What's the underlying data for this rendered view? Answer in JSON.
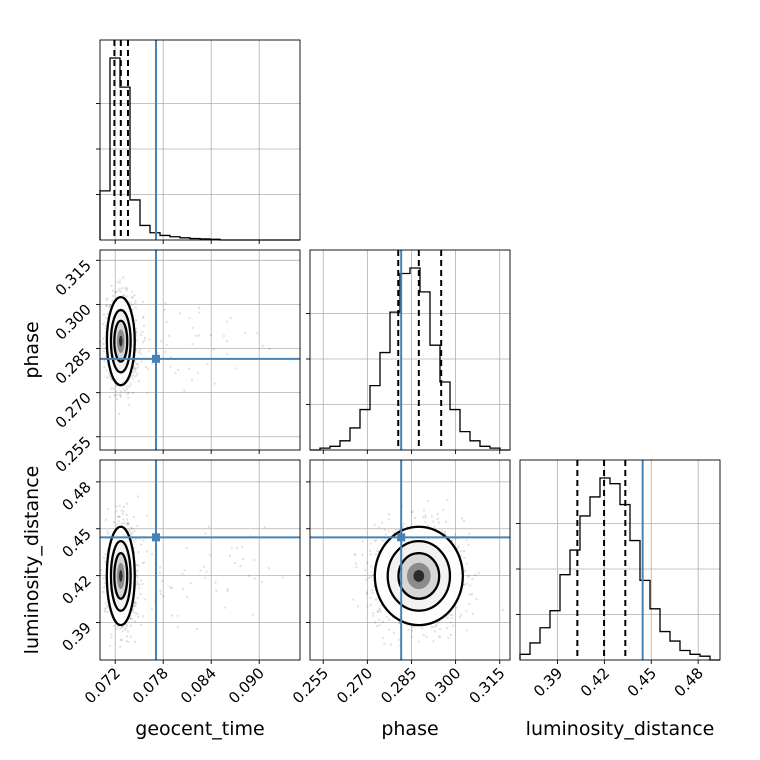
{
  "chart_data": {
    "type": "corner",
    "parameters": [
      "geocent_time",
      "phase",
      "luminosity_distance"
    ],
    "ranges": {
      "geocent_time": [
        0.0701,
        0.0951
      ],
      "phase": [
        0.2505,
        0.3185
      ],
      "luminosity_distance": [
        0.366,
        0.494
      ]
    },
    "ticks": {
      "geocent_time": [
        0.072,
        0.078,
        0.084,
        0.09
      ],
      "phase": [
        0.255,
        0.27,
        0.285,
        0.3,
        0.315
      ],
      "luminosity_distance": [
        0.39,
        0.42,
        0.45,
        0.48
      ]
    },
    "tick_labels": {
      "geocent_time": [
        "0.072",
        "0.078",
        "0.084",
        "0.090"
      ],
      "phase": [
        "0.255",
        "0.270",
        "0.285",
        "0.300",
        "0.315"
      ],
      "luminosity_distance": [
        "0.39",
        "0.42",
        "0.45",
        "0.48"
      ]
    },
    "truths": {
      "geocent_time": 0.0771,
      "phase": 0.2815,
      "luminosity_distance": 0.4445
    },
    "quantiles": {
      "geocent_time": [
        0.0719,
        0.0727,
        0.0736
      ],
      "phase": [
        0.2805,
        0.2875,
        0.2951
      ],
      "luminosity_distance": [
        0.4027,
        0.4198,
        0.4334
      ]
    },
    "histograms": {
      "geocent_time": {
        "bin_edges": [
          0.0701,
          0.07135,
          0.0726,
          0.07385,
          0.0751,
          0.07635,
          0.0776,
          0.07885,
          0.0801,
          0.08135,
          0.0826,
          0.08385,
          0.0851,
          0.08635,
          0.0876,
          0.08885,
          0.0901,
          0.09135,
          0.0926,
          0.09385,
          0.0951
        ],
        "counts": [
          0.27,
          1.0,
          0.84,
          0.22,
          0.08,
          0.04,
          0.025,
          0.018,
          0.012,
          0.008,
          0.006,
          0.004,
          0.0,
          0.0,
          0.0,
          0.0,
          0.0,
          0.0,
          0.0,
          0.0
        ]
      },
      "phase": {
        "bin_edges": [
          0.2505,
          0.2539,
          0.2573,
          0.2607,
          0.2641,
          0.2675,
          0.2709,
          0.2743,
          0.2777,
          0.2811,
          0.2845,
          0.2879,
          0.2913,
          0.2947,
          0.2981,
          0.3015,
          0.3049,
          0.3083,
          0.3117,
          0.3151,
          0.3185
        ],
        "counts": [
          0.0,
          0.01,
          0.02,
          0.05,
          0.12,
          0.22,
          0.35,
          0.53,
          0.75,
          0.96,
          0.99,
          0.86,
          0.57,
          0.37,
          0.22,
          0.1,
          0.05,
          0.02,
          0.01,
          0.0
        ]
      },
      "luminosity_distance": {
        "bin_edges": [
          0.366,
          0.3724,
          0.3788,
          0.3852,
          0.3916,
          0.398,
          0.4044,
          0.4108,
          0.4172,
          0.4236,
          0.43,
          0.4364,
          0.4428,
          0.4492,
          0.4556,
          0.462,
          0.4684,
          0.4748,
          0.4812,
          0.4876,
          0.494
        ],
        "counts": [
          0.03,
          0.09,
          0.17,
          0.26,
          0.45,
          0.58,
          0.76,
          0.86,
          0.96,
          0.93,
          0.82,
          0.63,
          0.42,
          0.27,
          0.15,
          0.1,
          0.05,
          0.03,
          0.02,
          0.0
        ]
      }
    },
    "grid": true
  }
}
